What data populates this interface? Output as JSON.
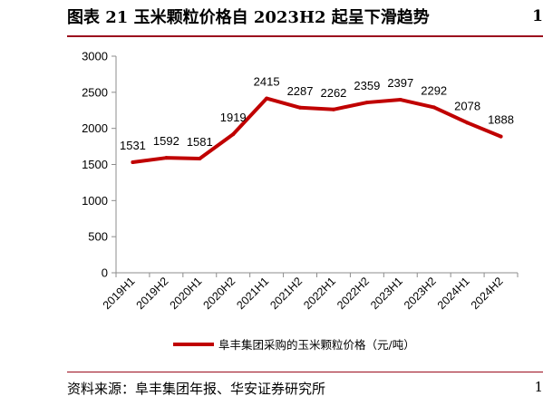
{
  "header": {
    "title": "图表 21 玉米颗粒价格自 2023H2 起呈下滑趋势",
    "page_mark": "1"
  },
  "footer": {
    "source": "资料来源：阜丰集团年报、华安证券研究所",
    "page_mark": "1"
  },
  "colors": {
    "series": "#c00000",
    "axis": "#8c8c8c",
    "text": "#000000",
    "rule": "#9b0c1d"
  },
  "chart_data": {
    "type": "line",
    "categories": [
      "2019H1",
      "2019H2",
      "2020H1",
      "2020H2",
      "2021H1",
      "2021H2",
      "2022H1",
      "2022H2",
      "2023H1",
      "2023H2",
      "2024H1",
      "2024H2"
    ],
    "series": [
      {
        "name": "阜丰集团采购的玉米颗粒价格（元/吨）",
        "values": [
          1531,
          1592,
          1581,
          1919,
          2415,
          2287,
          2262,
          2359,
          2397,
          2292,
          2078,
          1888
        ]
      }
    ],
    "data_labels": [
      "1531",
      "1592",
      "1581",
      "1919",
      "2415",
      "2287",
      "2262",
      "2359",
      "2397",
      "2292",
      "2078",
      "1888"
    ],
    "y_ticks": [
      0,
      500,
      1000,
      1500,
      2000,
      2500,
      3000
    ],
    "ylim": [
      0,
      3000
    ],
    "xlabel": "",
    "ylabel": "",
    "grid": false,
    "legend_position": "bottom"
  }
}
